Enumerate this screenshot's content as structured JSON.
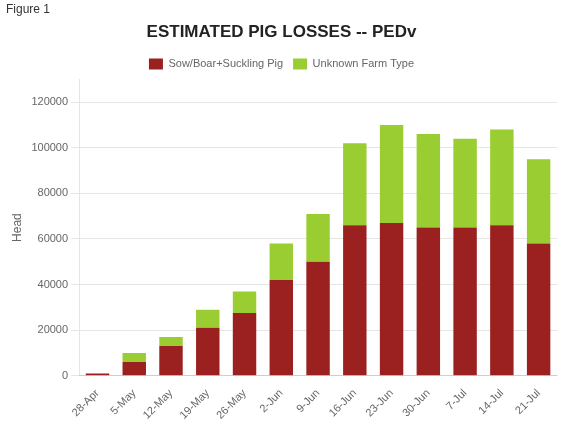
{
  "chart_data": {
    "type": "bar",
    "title": "ESTIMATED PIG LOSSES -- PEDv",
    "annotations": [
      "Figure 1"
    ],
    "ylabel": "Head",
    "categories": [
      "28-Apr",
      "5-May",
      "12-May",
      "19-May",
      "26-May",
      "2-Jun",
      "9-Jun",
      "16-Jun",
      "23-Jun",
      "30-Jun",
      "7-Jul",
      "14-Jul",
      "21-Jul"
    ],
    "series": [
      {
        "name": "Sow/Boar+Suckling Pig",
        "color": "#9B2020",
        "values": [
          1000,
          6000,
          13000,
          21000,
          27500,
          42000,
          50000,
          66000,
          67000,
          65000,
          65000,
          66000,
          58000
        ]
      },
      {
        "name": "Unknown Farm Type",
        "color": "#9ACD32",
        "values": [
          0,
          4000,
          4000,
          8000,
          9500,
          16000,
          21000,
          36000,
          43000,
          41000,
          39000,
          42000,
          37000
        ]
      }
    ],
    "stacked": true,
    "ylim": [
      0,
      130000
    ],
    "yticks": [
      0,
      20000,
      40000,
      60000,
      80000,
      100000,
      120000
    ],
    "grid": true,
    "legend": "top"
  }
}
